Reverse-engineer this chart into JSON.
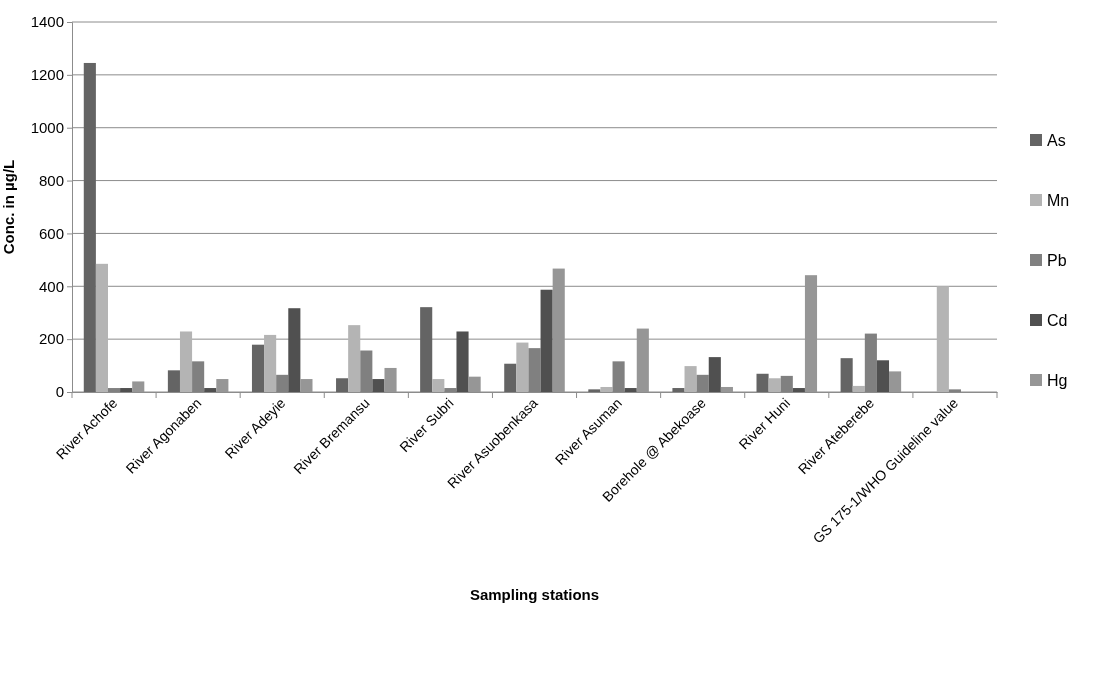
{
  "chart_data": {
    "type": "bar",
    "xlabel": "Sampling stations",
    "ylabel": "Conc. in µg/L",
    "categories": [
      "River Achofe",
      "River Agonaben",
      "River Adeyie",
      "River Bremansu",
      "River Subri",
      "River Asuobenkasa",
      "River Asuman",
      "Borehole @ Abekoase",
      "River Huni",
      "River Ateberebe",
      "GS 175-1/WHO Guideline value"
    ],
    "series": [
      {
        "name": "As",
        "color": "#646464",
        "values": [
          1245,
          82,
          179,
          52,
          321,
          107,
          10,
          15,
          69,
          128,
          null
        ]
      },
      {
        "name": "Mn",
        "color": "#b4b4b4",
        "values": [
          485,
          229,
          216,
          253,
          49,
          187,
          19,
          98,
          52,
          23,
          400
        ]
      },
      {
        "name": "Pb",
        "color": "#808080",
        "values": [
          15,
          116,
          65,
          157,
          15,
          166,
          116,
          65,
          61,
          221,
          10
        ]
      },
      {
        "name": "Cd",
        "color": "#505050",
        "values": [
          15,
          15,
          317,
          49,
          229,
          387,
          15,
          132,
          15,
          120,
          null
        ]
      },
      {
        "name": "Hg",
        "color": "#969696",
        "values": [
          40,
          49,
          49,
          91,
          58,
          467,
          240,
          19,
          442,
          78,
          null
        ]
      }
    ],
    "ylim": [
      0,
      1400
    ],
    "yticks": [
      0,
      200,
      400,
      600,
      800,
      1000,
      1200,
      1400
    ],
    "grid": "y",
    "legend": "right"
  }
}
